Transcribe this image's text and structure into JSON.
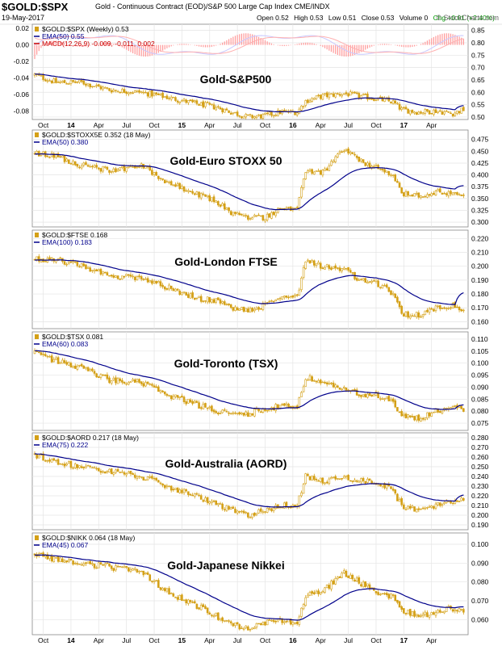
{
  "header": {
    "symbol": "$GOLD:$SPX",
    "description": "Gold - Continuous Contract (EOD)/S&P 500 Large Cap Index  CME/INDX",
    "date": "19-May-2017",
    "open": "Open 0.52",
    "high": "High 0.53",
    "low": "Low 0.51",
    "close": "Close 0.53",
    "volume": "Volume 0",
    "chg": "Chg +0.01 (+2.40%)",
    "chg_color": "#009900",
    "brand": "© StockCharts.com"
  },
  "colors": {
    "candle": "#d4a017",
    "ema": "#00008b",
    "macd": "#c8c8ff",
    "macd_signal": "#ffb0b0",
    "hist": "#ff9999",
    "grid": "#e4e4e4"
  },
  "chart_data": [
    {
      "type": "candlestick",
      "title": "Gold-S&P500",
      "legend": [
        "$GOLD:$SPX (Weekly) 0.53",
        "EMA(50) 0.55",
        "MACD(12,26,9) -0.009, -0.011, 0.002"
      ],
      "right_ticks": [
        "0.85",
        "0.80",
        "0.75",
        "0.70",
        "0.65",
        "0.60",
        "0.55",
        "0.50"
      ],
      "right_range": [
        0.49,
        0.875
      ],
      "left_ticks": [
        "0.02",
        "0.00",
        "-0.02",
        "-0.04",
        "-0.06",
        "-0.08"
      ],
      "left_range": [
        -0.09,
        0.025
      ],
      "anchors": [
        [
          0,
          0.67
        ],
        [
          10,
          0.64
        ],
        [
          22,
          0.64
        ],
        [
          35,
          0.61
        ],
        [
          50,
          0.6
        ],
        [
          62,
          0.58
        ],
        [
          75,
          0.555
        ],
        [
          85,
          0.54
        ],
        [
          92,
          0.52
        ],
        [
          100,
          0.5
        ],
        [
          108,
          0.505
        ],
        [
          115,
          0.52
        ],
        [
          123,
          0.52
        ],
        [
          127,
          0.565
        ],
        [
          135,
          0.585
        ],
        [
          145,
          0.595
        ],
        [
          152,
          0.585
        ],
        [
          160,
          0.575
        ],
        [
          168,
          0.56
        ],
        [
          172,
          0.53
        ],
        [
          180,
          0.52
        ],
        [
          188,
          0.525
        ],
        [
          196,
          0.515
        ],
        [
          201,
          0.53
        ]
      ],
      "ema_last": 0.55,
      "macd": true
    },
    {
      "type": "candlestick",
      "title": "Gold-Euro STOXX 50",
      "legend": [
        "$GOLD:$STOXX5E 0.352 (18 May)",
        "EMA(50) 0.380"
      ],
      "right_ticks": [
        "0.475",
        "0.450",
        "0.425",
        "0.400",
        "0.375",
        "0.350",
        "0.325",
        "0.300"
      ],
      "right_range": [
        0.29,
        0.495
      ],
      "anchors": [
        [
          0,
          0.445
        ],
        [
          10,
          0.44
        ],
        [
          22,
          0.42
        ],
        [
          35,
          0.41
        ],
        [
          50,
          0.42
        ],
        [
          62,
          0.385
        ],
        [
          75,
          0.36
        ],
        [
          85,
          0.345
        ],
        [
          92,
          0.32
        ],
        [
          100,
          0.31
        ],
        [
          108,
          0.31
        ],
        [
          115,
          0.33
        ],
        [
          123,
          0.325
        ],
        [
          127,
          0.41
        ],
        [
          135,
          0.405
        ],
        [
          145,
          0.455
        ],
        [
          152,
          0.43
        ],
        [
          160,
          0.415
        ],
        [
          168,
          0.4
        ],
        [
          172,
          0.36
        ],
        [
          180,
          0.355
        ],
        [
          188,
          0.365
        ],
        [
          196,
          0.36
        ],
        [
          201,
          0.352
        ]
      ],
      "ema_last": 0.38
    },
    {
      "type": "candlestick",
      "title": "Gold-London FTSE",
      "legend": [
        "$GOLD:$FTSE 0.168",
        "EMA(100) 0.183"
      ],
      "right_ticks": [
        "0.220",
        "0.210",
        "0.200",
        "0.190",
        "0.180",
        "0.170",
        "0.160"
      ],
      "right_range": [
        0.155,
        0.226
      ],
      "anchors": [
        [
          0,
          0.205
        ],
        [
          10,
          0.205
        ],
        [
          22,
          0.2
        ],
        [
          35,
          0.193
        ],
        [
          50,
          0.192
        ],
        [
          62,
          0.185
        ],
        [
          75,
          0.177
        ],
        [
          85,
          0.175
        ],
        [
          92,
          0.17
        ],
        [
          100,
          0.168
        ],
        [
          108,
          0.172
        ],
        [
          115,
          0.178
        ],
        [
          123,
          0.178
        ],
        [
          127,
          0.205
        ],
        [
          135,
          0.2
        ],
        [
          145,
          0.198
        ],
        [
          152,
          0.19
        ],
        [
          160,
          0.188
        ],
        [
          168,
          0.18
        ],
        [
          172,
          0.165
        ],
        [
          180,
          0.165
        ],
        [
          188,
          0.17
        ],
        [
          196,
          0.172
        ],
        [
          201,
          0.168
        ]
      ],
      "ema_last": 0.183
    },
    {
      "type": "candlestick",
      "title": "Gold-Toronto (TSX)",
      "legend": [
        "$GOLD:$TSX 0.081",
        "EMA(60) 0.083"
      ],
      "right_ticks": [
        "0.110",
        "0.105",
        "0.100",
        "0.095",
        "0.090",
        "0.085",
        "0.080",
        "0.075"
      ],
      "right_range": [
        0.072,
        0.113
      ],
      "anchors": [
        [
          0,
          0.104
        ],
        [
          10,
          0.101
        ],
        [
          22,
          0.098
        ],
        [
          35,
          0.093
        ],
        [
          50,
          0.092
        ],
        [
          62,
          0.087
        ],
        [
          75,
          0.083
        ],
        [
          85,
          0.08
        ],
        [
          92,
          0.079
        ],
        [
          100,
          0.079
        ],
        [
          108,
          0.081
        ],
        [
          115,
          0.082
        ],
        [
          123,
          0.082
        ],
        [
          127,
          0.094
        ],
        [
          135,
          0.092
        ],
        [
          145,
          0.089
        ],
        [
          152,
          0.087
        ],
        [
          160,
          0.087
        ],
        [
          168,
          0.084
        ],
        [
          172,
          0.078
        ],
        [
          180,
          0.077
        ],
        [
          188,
          0.08
        ],
        [
          196,
          0.082
        ],
        [
          201,
          0.081
        ]
      ],
      "ema_last": 0.083
    },
    {
      "type": "candlestick",
      "title": "Gold-Australia (AORD)",
      "legend": [
        "$GOLD:$AORD 0.217 (18 May)",
        "EMA(75) 0.222"
      ],
      "right_ticks": [
        "0.280",
        "0.270",
        "0.260",
        "0.250",
        "0.240",
        "0.230",
        "0.220",
        "0.210",
        "0.200",
        "0.190"
      ],
      "right_range": [
        0.185,
        0.285
      ],
      "anchors": [
        [
          0,
          0.262
        ],
        [
          10,
          0.255
        ],
        [
          22,
          0.25
        ],
        [
          35,
          0.245
        ],
        [
          50,
          0.24
        ],
        [
          62,
          0.23
        ],
        [
          75,
          0.22
        ],
        [
          85,
          0.212
        ],
        [
          92,
          0.205
        ],
        [
          100,
          0.2
        ],
        [
          108,
          0.205
        ],
        [
          115,
          0.21
        ],
        [
          123,
          0.21
        ],
        [
          127,
          0.24
        ],
        [
          135,
          0.235
        ],
        [
          145,
          0.24
        ],
        [
          152,
          0.235
        ],
        [
          160,
          0.235
        ],
        [
          168,
          0.225
        ],
        [
          172,
          0.21
        ],
        [
          180,
          0.205
        ],
        [
          188,
          0.21
        ],
        [
          196,
          0.215
        ],
        [
          201,
          0.217
        ]
      ],
      "ema_last": 0.222
    },
    {
      "type": "candlestick",
      "title": "Gold-Japanese Nikkei",
      "legend": [
        "$GOLD:$NIKK 0.064 (18 May)",
        "EMA(45) 0.067"
      ],
      "right_ticks": [
        "0.100",
        "0.090",
        "0.080",
        "0.070",
        "0.060"
      ],
      "right_range": [
        0.052,
        0.106
      ],
      "anchors": [
        [
          0,
          0.095
        ],
        [
          10,
          0.092
        ],
        [
          22,
          0.09
        ],
        [
          35,
          0.088
        ],
        [
          50,
          0.085
        ],
        [
          62,
          0.075
        ],
        [
          75,
          0.068
        ],
        [
          85,
          0.062
        ],
        [
          92,
          0.058
        ],
        [
          100,
          0.055
        ],
        [
          108,
          0.058
        ],
        [
          115,
          0.06
        ],
        [
          123,
          0.058
        ],
        [
          127,
          0.073
        ],
        [
          135,
          0.075
        ],
        [
          145,
          0.085
        ],
        [
          152,
          0.08
        ],
        [
          160,
          0.075
        ],
        [
          168,
          0.072
        ],
        [
          172,
          0.065
        ],
        [
          180,
          0.062
        ],
        [
          188,
          0.064
        ],
        [
          196,
          0.066
        ],
        [
          201,
          0.064
        ]
      ],
      "ema_last": 0.067
    }
  ],
  "x_axis": {
    "labels": [
      "Oct",
      "14",
      "Apr",
      "Jul",
      "Oct",
      "15",
      "Apr",
      "Jul",
      "Oct",
      "16",
      "Apr",
      "Jul",
      "Oct",
      "17",
      "Apr"
    ],
    "bar_index": [
      4,
      17,
      30,
      43,
      56,
      69,
      82,
      95,
      108,
      121,
      134,
      147,
      160,
      173,
      186
    ],
    "bold": [
      "14",
      "15",
      "16",
      "17"
    ]
  }
}
